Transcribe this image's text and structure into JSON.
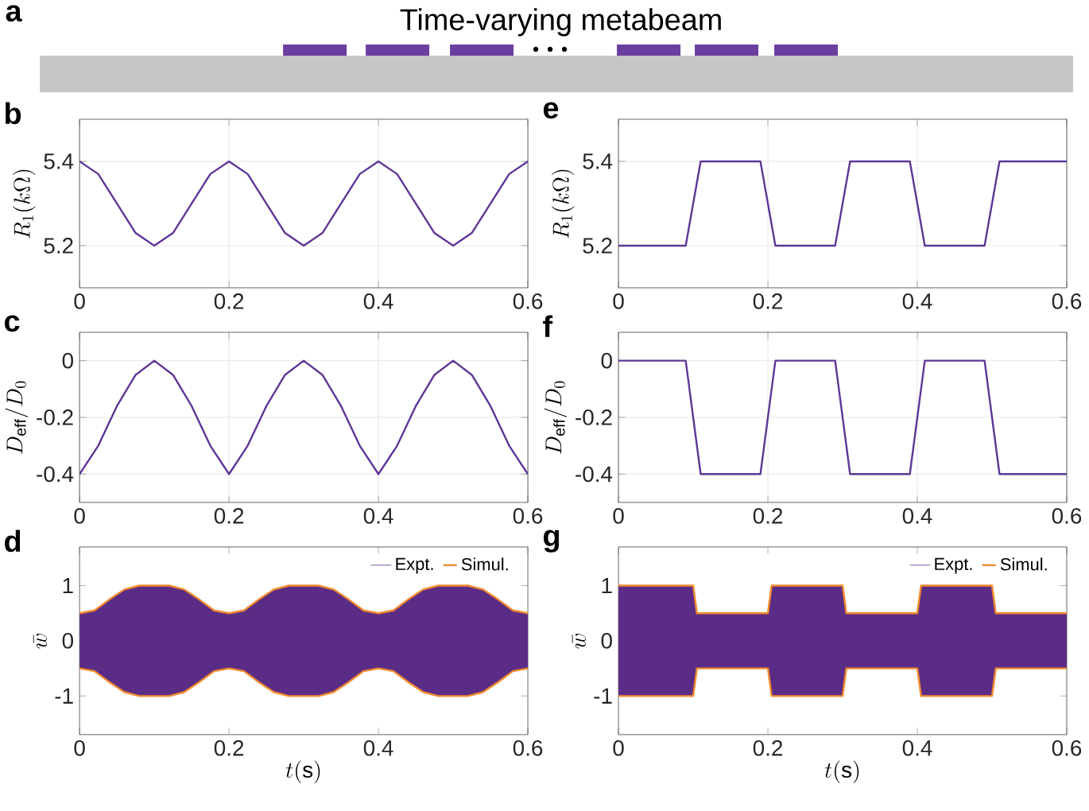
{
  "chart_data": [
    {
      "type": "other",
      "title": "a",
      "subtitle": "Time-varying metabeam"
    },
    {
      "type": "line",
      "title": "b",
      "ylabel": "R_1(k\\Omega)",
      "x": [
        0,
        0.025,
        0.05,
        0.075,
        0.1,
        0.125,
        0.15,
        0.175,
        0.2,
        0.225,
        0.25,
        0.275,
        0.3,
        0.325,
        0.35,
        0.375,
        0.4,
        0.425,
        0.45,
        0.475,
        0.5,
        0.525,
        0.55,
        0.575,
        0.6
      ],
      "xlim": [
        0,
        0.6
      ],
      "xticks": [
        0,
        0.2,
        0.4,
        0.6
      ],
      "ylim": [
        5.1,
        5.5
      ],
      "yticks": [
        5.2,
        5.4
      ],
      "grid": true,
      "series": [
        {
          "color": "#5e3696",
          "values": [
            5.4,
            5.37,
            5.3,
            5.23,
            5.2,
            5.23,
            5.3,
            5.37,
            5.4,
            5.37,
            5.3,
            5.23,
            5.2,
            5.23,
            5.3,
            5.37,
            5.4,
            5.37,
            5.3,
            5.23,
            5.2,
            5.23,
            5.3,
            5.37,
            5.4
          ]
        }
      ]
    },
    {
      "type": "line",
      "title": "c",
      "ylabel": "D_{\\rm eff}/D_0",
      "x": [
        0,
        0.025,
        0.05,
        0.075,
        0.1,
        0.125,
        0.15,
        0.175,
        0.2,
        0.225,
        0.25,
        0.275,
        0.3,
        0.325,
        0.35,
        0.375,
        0.4,
        0.425,
        0.45,
        0.475,
        0.5,
        0.525,
        0.55,
        0.575,
        0.6
      ],
      "xlim": [
        0,
        0.6
      ],
      "xticks": [
        0,
        0.2,
        0.4,
        0.6
      ],
      "ylim": [
        -0.5,
        0.1
      ],
      "yticks": [
        -0.4,
        -0.2,
        0
      ],
      "grid": true,
      "series": [
        {
          "color": "#5e3696",
          "values": [
            -0.4,
            -0.3,
            -0.16,
            -0.05,
            0,
            -0.05,
            -0.16,
            -0.3,
            -0.4,
            -0.3,
            -0.16,
            -0.05,
            0,
            -0.05,
            -0.16,
            -0.3,
            -0.4,
            -0.3,
            -0.16,
            -0.05,
            0,
            -0.05,
            -0.16,
            -0.3,
            -0.4
          ]
        }
      ]
    },
    {
      "type": "area",
      "title": "d",
      "xlabel": "t(\\mathrm{s})",
      "ylabel": "\\bar{w}",
      "x": [
        0,
        0.02,
        0.04,
        0.06,
        0.08,
        0.12,
        0.14,
        0.16,
        0.18,
        0.2,
        0.22,
        0.24,
        0.26,
        0.28,
        0.32,
        0.34,
        0.36,
        0.38,
        0.4,
        0.42,
        0.44,
        0.46,
        0.48,
        0.52,
        0.54,
        0.56,
        0.58,
        0.6
      ],
      "xlim": [
        0,
        0.6
      ],
      "xticks": [
        0,
        0.2,
        0.4,
        0.6
      ],
      "ylim": [
        -1.7,
        1.7
      ],
      "yticks": [
        -1,
        0,
        1
      ],
      "legend": "top right",
      "series": [
        {
          "name": "Expt.",
          "type": "area",
          "color": "#5b2c86",
          "values": [
            0.5,
            0.55,
            0.75,
            0.93,
            1,
            1,
            0.93,
            0.75,
            0.55,
            0.5,
            0.55,
            0.75,
            0.93,
            1,
            1,
            0.93,
            0.75,
            0.55,
            0.5,
            0.55,
            0.75,
            0.93,
            1,
            1,
            0.93,
            0.75,
            0.55,
            0.5
          ]
        },
        {
          "type": "area",
          "color": "#5b2c86",
          "values": [
            -0.5,
            -0.55,
            -0.75,
            -0.93,
            -1,
            -1,
            -0.93,
            -0.75,
            -0.55,
            -0.5,
            -0.55,
            -0.75,
            -0.93,
            -1,
            -1,
            -0.93,
            -0.75,
            -0.55,
            -0.5,
            -0.55,
            -0.75,
            -0.93,
            -1,
            -1,
            -0.93,
            -0.75,
            -0.55,
            -0.5
          ]
        },
        {
          "name": "Simul.",
          "type": "line",
          "color": "#f28a2e",
          "values": [
            0.5,
            0.55,
            0.75,
            0.93,
            1,
            1,
            0.93,
            0.75,
            0.55,
            0.5,
            0.55,
            0.75,
            0.93,
            1,
            1,
            0.93,
            0.75,
            0.55,
            0.5,
            0.55,
            0.75,
            0.93,
            1,
            1,
            0.93,
            0.75,
            0.55,
            0.5
          ]
        },
        {
          "type": "line",
          "color": "#f28a2e",
          "values": [
            -0.5,
            -0.55,
            -0.75,
            -0.93,
            -1,
            -1,
            -0.93,
            -0.75,
            -0.55,
            -0.5,
            -0.55,
            -0.75,
            -0.93,
            -1,
            -1,
            -0.93,
            -0.75,
            -0.55,
            -0.5,
            -0.55,
            -0.75,
            -0.93,
            -1,
            -1,
            -0.93,
            -0.75,
            -0.55,
            -0.5
          ]
        }
      ]
    },
    {
      "type": "line",
      "title": "e",
      "ylabel": "R_1(k\\Omega)",
      "x": [
        0,
        0.09,
        0.11,
        0.19,
        0.21,
        0.29,
        0.31,
        0.39,
        0.41,
        0.49,
        0.51,
        0.6
      ],
      "xlim": [
        0,
        0.6
      ],
      "xticks": [
        0,
        0.2,
        0.4,
        0.6
      ],
      "ylim": [
        5.1,
        5.5
      ],
      "yticks": [
        5.2,
        5.4
      ],
      "grid": true,
      "series": [
        {
          "color": "#5e3696",
          "values": [
            5.2,
            5.2,
            5.4,
            5.4,
            5.2,
            5.2,
            5.4,
            5.4,
            5.2,
            5.2,
            5.4,
            5.4
          ]
        }
      ]
    },
    {
      "type": "line",
      "title": "f",
      "ylabel": "D_{\\rm eff}/D_0",
      "x": [
        0,
        0.09,
        0.11,
        0.19,
        0.21,
        0.29,
        0.31,
        0.39,
        0.41,
        0.49,
        0.51,
        0.6
      ],
      "xlim": [
        0,
        0.6
      ],
      "xticks": [
        0,
        0.2,
        0.4,
        0.6
      ],
      "ylim": [
        -0.5,
        0.1
      ],
      "yticks": [
        -0.4,
        -0.2,
        0
      ],
      "grid": true,
      "series": [
        {
          "color": "#5e3696",
          "values": [
            0,
            0,
            -0.4,
            -0.4,
            0,
            0,
            -0.4,
            -0.4,
            0,
            0,
            -0.4,
            -0.4
          ]
        }
      ]
    },
    {
      "type": "area",
      "title": "g",
      "xlabel": "t(\\mathrm{s})",
      "ylabel": "\\bar{w}",
      "x": [
        0,
        0.1,
        0.105,
        0.2,
        0.205,
        0.3,
        0.305,
        0.4,
        0.405,
        0.5,
        0.505,
        0.6
      ],
      "xlim": [
        0,
        0.6
      ],
      "xticks": [
        0,
        0.2,
        0.4,
        0.6
      ],
      "ylim": [
        -1.7,
        1.7
      ],
      "yticks": [
        -1,
        0,
        1
      ],
      "legend": "top right",
      "series": [
        {
          "name": "Expt.",
          "type": "area",
          "color": "#5b2c86",
          "values": [
            1,
            1,
            0.5,
            0.5,
            1,
            1,
            0.5,
            0.5,
            1,
            1,
            0.5,
            0.5
          ]
        },
        {
          "type": "area",
          "color": "#5b2c86",
          "values": [
            -1,
            -1,
            -0.5,
            -0.5,
            -1,
            -1,
            -0.5,
            -0.5,
            -1,
            -1,
            -0.5,
            -0.5
          ]
        },
        {
          "name": "Simul.",
          "type": "line",
          "color": "#f28a2e",
          "values": [
            1,
            1,
            0.5,
            0.5,
            1,
            1,
            0.5,
            0.5,
            1,
            1,
            0.5,
            0.5
          ]
        },
        {
          "type": "line",
          "color": "#f28a2e",
          "values": [
            -1,
            -1,
            -0.5,
            -0.5,
            -1,
            -1,
            -0.5,
            -0.5,
            -1,
            -1,
            -0.5,
            -0.5
          ]
        }
      ]
    }
  ]
}
